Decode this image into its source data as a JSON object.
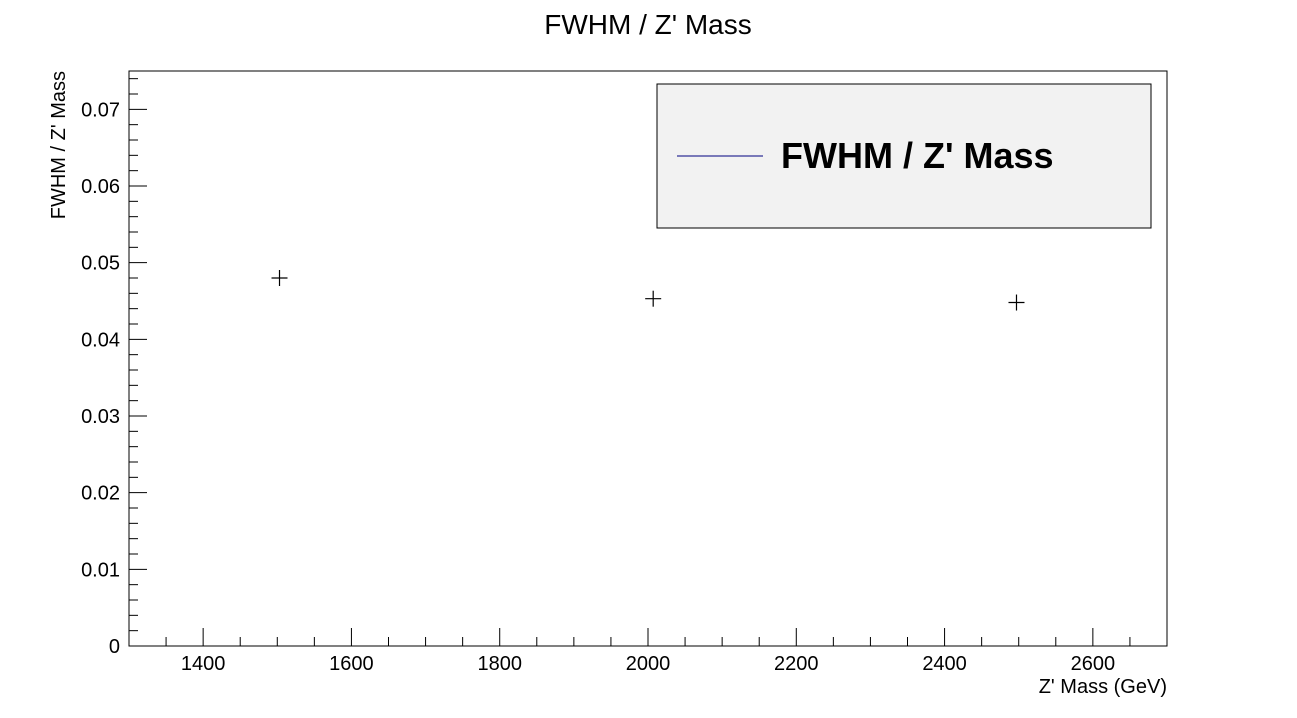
{
  "chart_data": {
    "type": "scatter",
    "title": "FWHM / Z' Mass",
    "xlabel": "Z' Mass (GeV)",
    "ylabel": "FWHM / Z' Mass",
    "xlim": [
      1300,
      2700
    ],
    "ylim": [
      0,
      0.075
    ],
    "x_ticks": [
      1400,
      1600,
      1800,
      2000,
      2200,
      2400,
      2600
    ],
    "y_ticks": [
      0,
      0.01,
      0.02,
      0.03,
      0.04,
      0.05,
      0.06,
      0.07
    ],
    "x_tick_labels": [
      "1400",
      "1600",
      "1800",
      "2000",
      "2200",
      "2400",
      "2600"
    ],
    "y_tick_labels": [
      "0",
      "0.01",
      "0.02",
      "0.03",
      "0.04",
      "0.05",
      "0.06",
      "0.07"
    ],
    "series": [
      {
        "name": "FWHM / Z' Mass",
        "color": "#000080",
        "marker": "plus",
        "points": [
          {
            "x": 1503,
            "y": 0.048
          },
          {
            "x": 2007,
            "y": 0.0453
          },
          {
            "x": 2497,
            "y": 0.0448
          }
        ]
      }
    ],
    "legend": {
      "placement": "top-right",
      "entry": "FWHM / Z' Mass",
      "background": "#f2f2f2"
    },
    "grid": false
  }
}
